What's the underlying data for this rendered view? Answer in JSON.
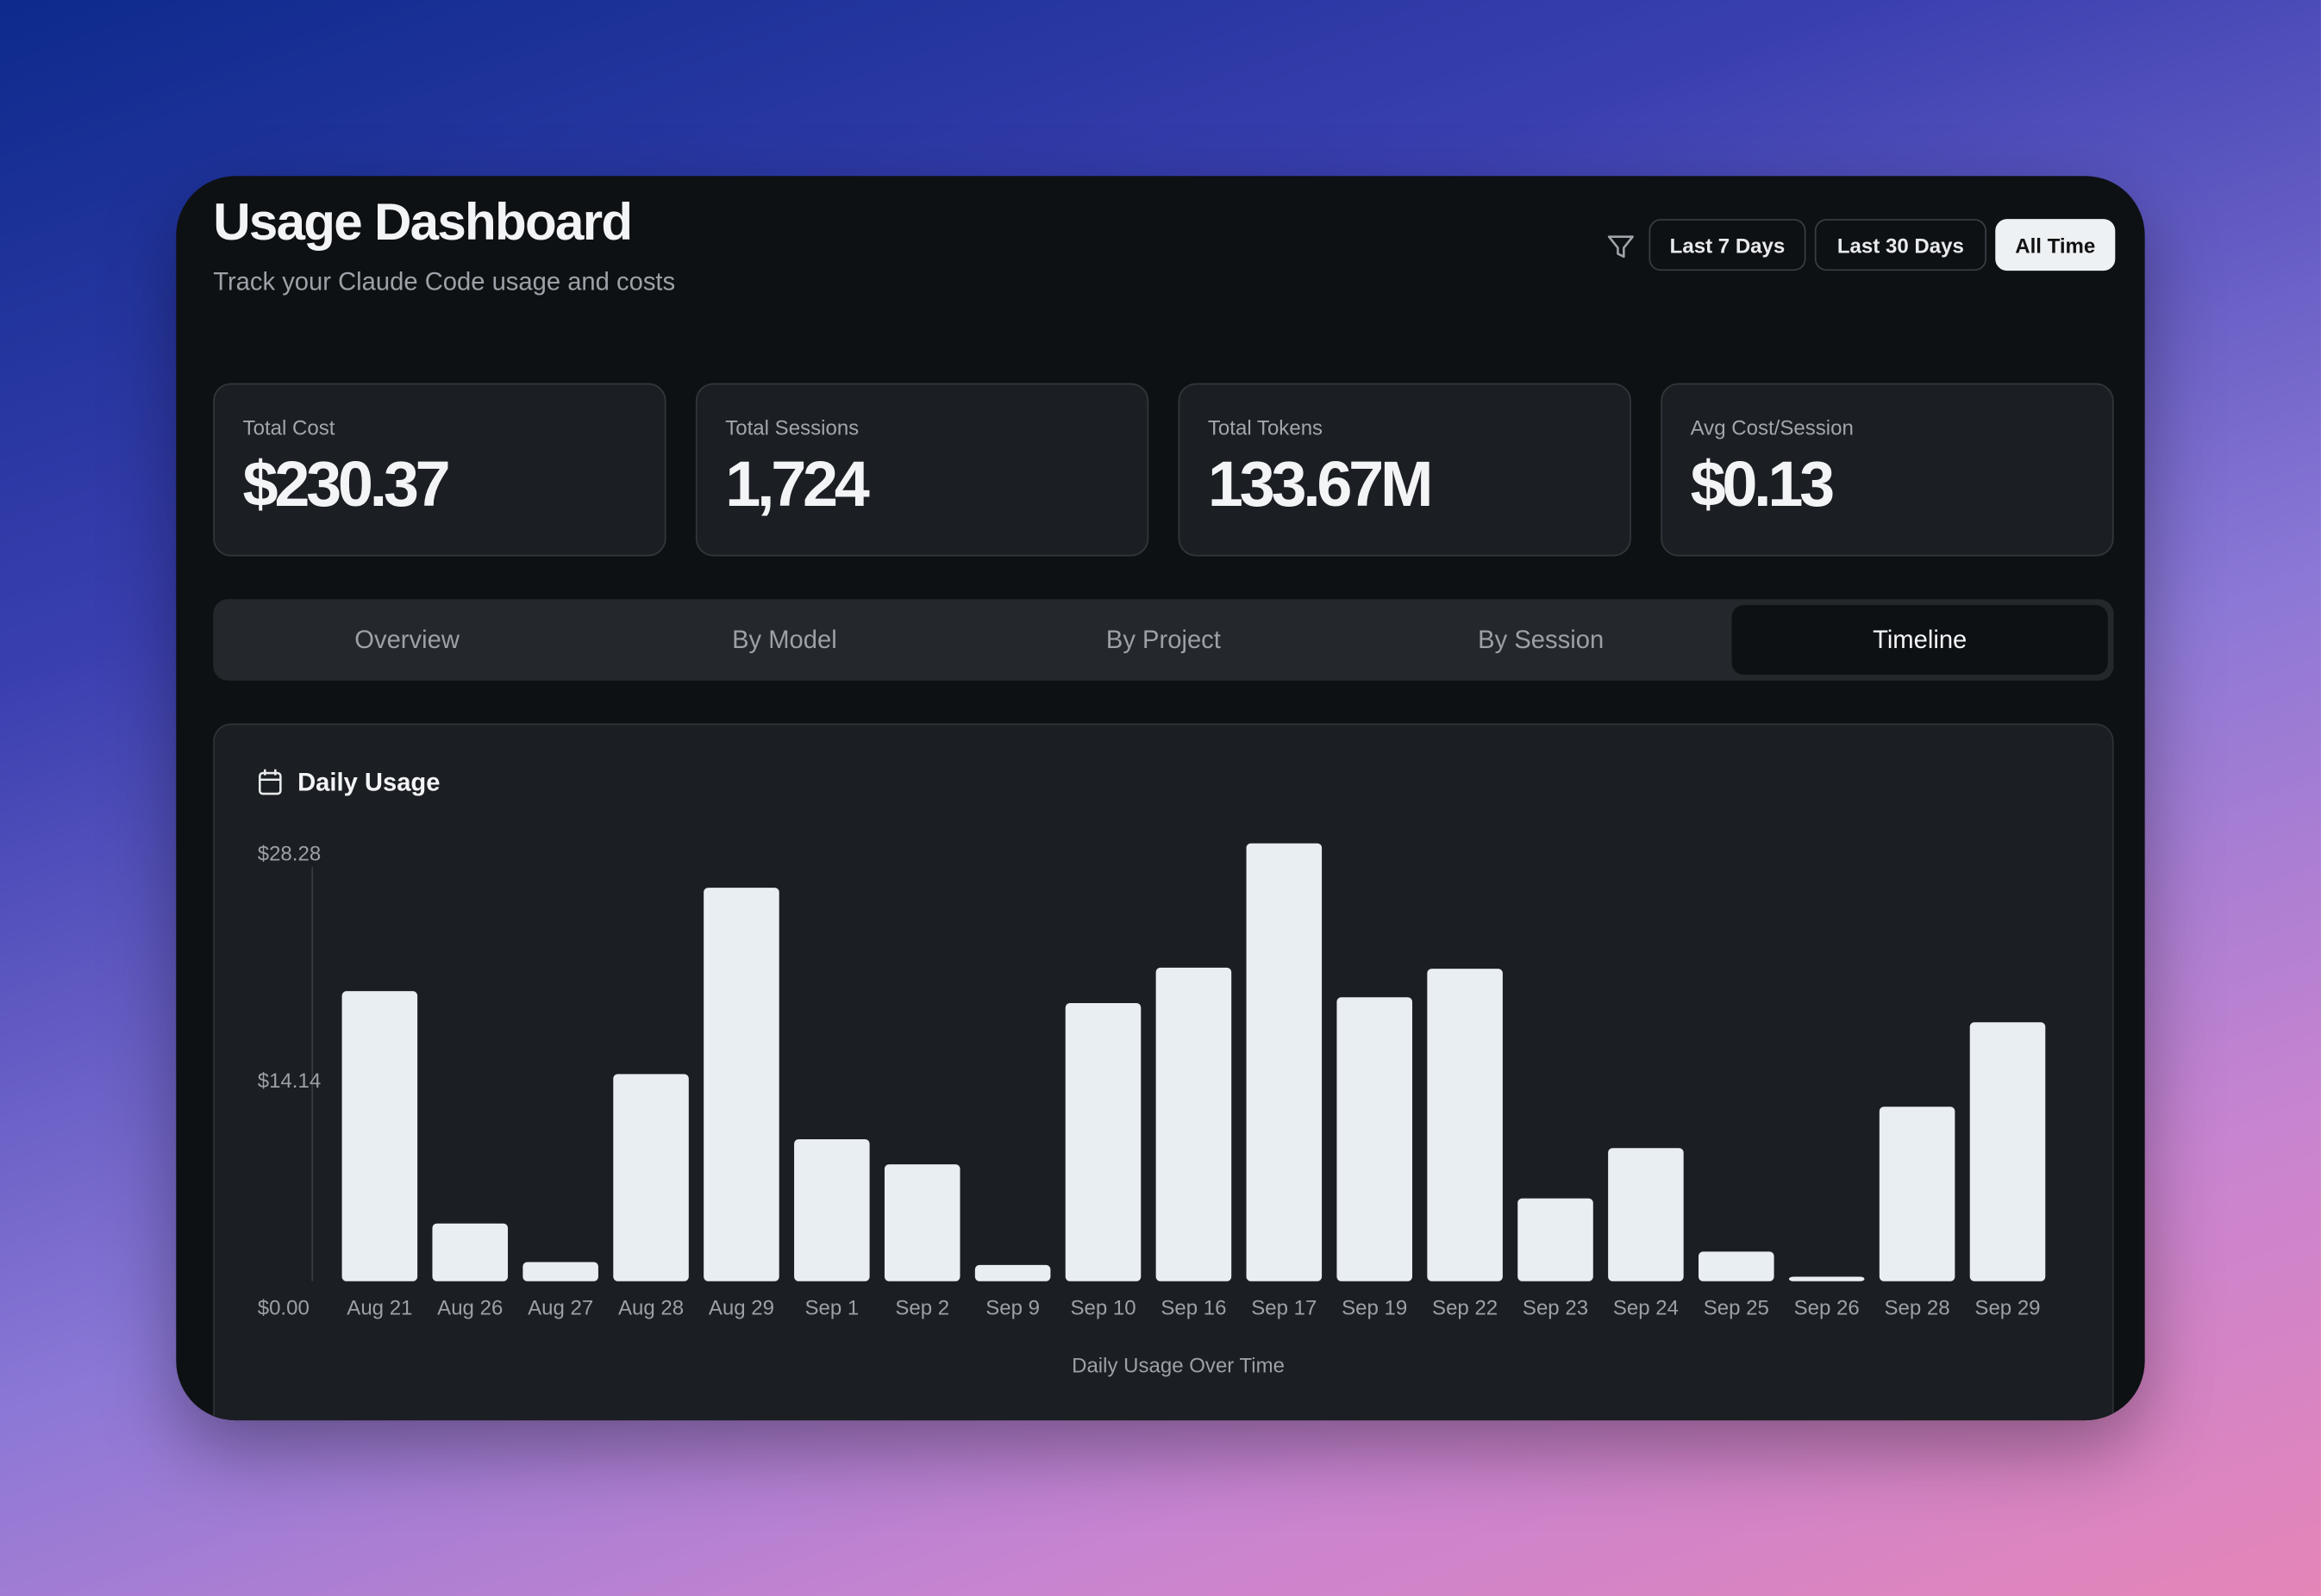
{
  "header": {
    "title": "Usage Dashboard",
    "subtitle": "Track your Claude Code usage and costs"
  },
  "filters": [
    "Last 7 Days",
    "Last 30 Days",
    "All Time"
  ],
  "stats": [
    {
      "label": "Total Cost",
      "value": "$230.37"
    },
    {
      "label": "Total Sessions",
      "value": "1,724"
    },
    {
      "label": "Total Tokens",
      "value": "133.67M"
    },
    {
      "label": "Avg Cost/Session",
      "value": "$0.13"
    }
  ],
  "tabs": [
    "Overview",
    "By Model",
    "By Project",
    "By Session",
    "Timeline"
  ],
  "chart_data": {
    "type": "bar",
    "title": "Daily Usage",
    "x_label": "Daily Usage Over Time",
    "categories": [
      "Aug 21",
      "Aug 26",
      "Aug 27",
      "Aug 28",
      "Aug 29",
      "Sep 1",
      "Sep 2",
      "Sep 9",
      "Sep 10",
      "Sep 16",
      "Sep 17",
      "Sep 19",
      "Sep 22",
      "Sep 23",
      "Sep 24",
      "Sep 25",
      "Sep 26",
      "Sep 28",
      "Sep 29"
    ],
    "values": [
      18.73,
      3.73,
      1.24,
      13.38,
      25.41,
      9.17,
      7.55,
      1.05,
      17.96,
      20.25,
      28.28,
      18.34,
      20.18,
      5.35,
      8.6,
      1.91,
      0.29,
      11.27,
      16.72
    ],
    "color": "#e9eef2",
    "ylim": [
      0,
      28.28
    ],
    "yticks": [
      {
        "value": 0,
        "label": "$0.00"
      },
      {
        "value": 14.14,
        "label": "$14.14"
      },
      {
        "value": 28.28,
        "label": "$28.28"
      }
    ]
  }
}
